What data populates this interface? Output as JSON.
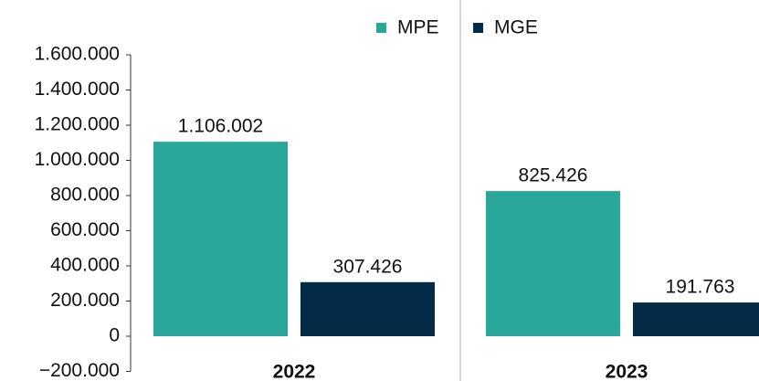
{
  "chart_data": {
    "type": "bar",
    "categories": [
      "2022",
      "2023"
    ],
    "series": [
      {
        "name": "MPE",
        "color": "#2aa79b",
        "values": [
          1106002,
          825426
        ],
        "value_labels": [
          "1.106.002",
          "825.426"
        ]
      },
      {
        "name": "MGE",
        "color": "#032b47",
        "values": [
          307426,
          191763
        ],
        "value_labels": [
          "307.426",
          "191.763"
        ]
      }
    ],
    "ylim": [
      -200000,
      1600000
    ],
    "yticks": [
      {
        "value": -200000,
        "label": "−200.000"
      },
      0,
      {
        "value": 200000,
        "label": "200.000"
      },
      {
        "value": 400000,
        "label": "400.000"
      },
      {
        "value": 600000,
        "label": "600.000"
      },
      {
        "value": 800000,
        "label": "800.000"
      },
      {
        "value": 1000000,
        "label": "1.000.000"
      },
      {
        "value": 1200000,
        "label": "1.200.000"
      },
      {
        "value": 1400000,
        "label": "1.400.000"
      },
      {
        "value": 1600000,
        "label": "1.600.000"
      }
    ],
    "legend": "top"
  }
}
